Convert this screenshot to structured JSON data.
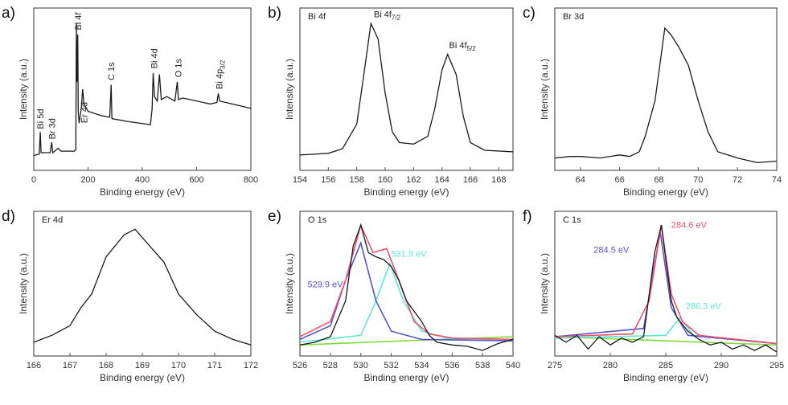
{
  "colors": {
    "raw": "#1a1a1a",
    "envelope": "#f0506e",
    "peak1": "#5555cc",
    "peak2": "#5ee8d6",
    "background": "#7fdc3c"
  },
  "chart_data": [
    {
      "type": "line",
      "panel": "a)",
      "title": "",
      "xlabel": "Binding energy (eV)",
      "ylabel": "Intensity (a.u.)",
      "xlim": [
        0,
        800
      ],
      "ylim": [
        0,
        110
      ],
      "xticks": [
        0,
        200,
        400,
        600,
        800
      ],
      "grid": false,
      "series": [
        {
          "role": "raw",
          "x": [
            0,
            20,
            24,
            27,
            60,
            66,
            70,
            90,
            100,
            150,
            155,
            157,
            159,
            162,
            164,
            167,
            175,
            180,
            185,
            200,
            250,
            280,
            285,
            288,
            350,
            430,
            436,
            440,
            445,
            455,
            463,
            470,
            490,
            520,
            529,
            533,
            550,
            650,
            675,
            680,
            685,
            800
          ],
          "y": [
            10,
            11,
            26,
            12,
            12,
            19,
            12,
            15,
            13,
            13,
            14,
            100,
            60,
            92,
            40,
            32,
            42,
            55,
            45,
            40,
            37,
            36,
            58,
            35,
            33,
            31,
            42,
            66,
            50,
            47,
            65,
            48,
            50,
            47,
            60,
            48,
            49,
            45,
            46,
            52,
            47,
            42
          ]
        }
      ],
      "annotations": [
        {
          "text": "Bi 5d",
          "x": 24,
          "y": 28,
          "rot": true
        },
        {
          "text": "Br 3d",
          "x": 66,
          "y": 21,
          "rot": true
        },
        {
          "text": "Bi 4f",
          "x": 163,
          "y": 95,
          "rot": true
        },
        {
          "text": "Er 4d",
          "x": 185,
          "y": 32,
          "rot": true
        },
        {
          "text": "C 1s",
          "x": 285,
          "y": 61,
          "rot": true
        },
        {
          "text": "Bi 4d",
          "x": 443,
          "y": 69,
          "rot": true
        },
        {
          "text": "O 1s",
          "x": 532,
          "y": 63,
          "rot": true
        },
        {
          "text": "Bi 4p",
          "sub": "3/2",
          "x": 683,
          "y": 55,
          "rot": true
        }
      ]
    },
    {
      "type": "line",
      "panel": "b)",
      "title": "Bi 4f",
      "xlabel": "Binding energy (eV)",
      "ylabel": "Intensity (a.u.)",
      "xlim": [
        154,
        169
      ],
      "ylim": [
        0,
        105
      ],
      "xticks": [
        154,
        156,
        158,
        160,
        162,
        164,
        166,
        168
      ],
      "grid": false,
      "series": [
        {
          "role": "raw",
          "x": [
            154,
            156,
            157,
            158,
            158.5,
            159,
            159.5,
            160,
            160.5,
            161,
            162,
            163,
            163.5,
            164,
            164.4,
            165,
            165.5,
            166,
            167,
            169
          ],
          "y": [
            10,
            11,
            14,
            30,
            62,
            95,
            85,
            50,
            25,
            18,
            17,
            22,
            40,
            65,
            75,
            62,
            35,
            18,
            13,
            12
          ]
        }
      ],
      "annotations": [
        {
          "text": "Bi 4f",
          "sub": "7/2",
          "x": 159.2,
          "y": 99
        },
        {
          "text": "Bi 4f",
          "sub": "5/2",
          "x": 164.5,
          "y": 79
        }
      ]
    },
    {
      "type": "line",
      "panel": "c)",
      "title": "Br 3d",
      "xlabel": "Binding energy (eV)",
      "ylabel": "Intensity (a.u.)",
      "xlim": [
        62.7,
        74
      ],
      "ylim": [
        0,
        105
      ],
      "xticks": [
        64,
        66,
        68,
        70,
        72,
        74
      ],
      "grid": false,
      "series": [
        {
          "role": "raw",
          "x": [
            62.7,
            63.5,
            64,
            65,
            66,
            66.5,
            67,
            67.3,
            67.8,
            68.3,
            68.6,
            69,
            69.5,
            70,
            70.5,
            71,
            72,
            73,
            74
          ],
          "y": [
            8,
            9,
            9,
            8,
            10,
            9,
            12,
            22,
            45,
            92,
            88,
            80,
            68,
            45,
            25,
            12,
            8,
            5,
            6
          ]
        }
      ],
      "annotations": []
    },
    {
      "type": "line",
      "panel": "d)",
      "title": "Er 4d",
      "xlabel": "Binding energy (eV)",
      "ylabel": "Intensity (a.u.)",
      "xlim": [
        166,
        172
      ],
      "ylim": [
        0,
        105
      ],
      "xticks": [
        166,
        167,
        168,
        169,
        170,
        171,
        172
      ],
      "grid": false,
      "series": [
        {
          "role": "raw",
          "x": [
            166,
            166.5,
            167,
            167.3,
            167.6,
            168,
            168.5,
            168.8,
            169.2,
            169.6,
            170,
            170.5,
            171,
            171.5,
            172
          ],
          "y": [
            10,
            15,
            22,
            35,
            45,
            72,
            88,
            92,
            80,
            68,
            45,
            30,
            18,
            12,
            8
          ]
        }
      ],
      "annotations": []
    },
    {
      "type": "line",
      "panel": "e)",
      "title": "O 1s",
      "xlabel": "Binding energy (eV)",
      "ylabel": "Intensity (a.u.)",
      "xlim": [
        526,
        540
      ],
      "ylim": [
        0,
        105
      ],
      "xticks": [
        526,
        528,
        530,
        532,
        534,
        536,
        538,
        540
      ],
      "grid": false,
      "series": [
        {
          "role": "raw",
          "x": [
            526,
            527,
            528,
            529,
            529.5,
            530,
            530.5,
            531,
            531.5,
            532,
            532.5,
            533,
            534,
            534.5,
            535,
            536,
            537,
            538,
            539,
            540
          ],
          "y": [
            8,
            10,
            14,
            40,
            80,
            95,
            75,
            72,
            70,
            65,
            55,
            40,
            25,
            15,
            10,
            8,
            7,
            4,
            9,
            12
          ]
        },
        {
          "role": "envelope",
          "x": [
            526,
            528,
            529,
            530,
            530.8,
            531.7,
            532.5,
            533.5,
            534.5,
            536,
            540
          ],
          "y": [
            14,
            25,
            55,
            95,
            75,
            78,
            55,
            25,
            16,
            13,
            12
          ]
        },
        {
          "role": "peak1",
          "x": [
            526,
            528,
            529,
            530,
            531,
            532,
            534,
            540
          ],
          "y": [
            12,
            22,
            55,
            82,
            40,
            18,
            12,
            11
          ]
        },
        {
          "role": "peak2",
          "x": [
            526,
            530,
            531,
            531.9,
            532.8,
            534,
            536,
            540
          ],
          "y": [
            10,
            15,
            40,
            67,
            40,
            18,
            12,
            11
          ]
        },
        {
          "role": "background",
          "x": [
            526,
            533,
            540
          ],
          "y": [
            8,
            11,
            14
          ]
        }
      ],
      "annotations": [
        {
          "text": "529.9 eV",
          "color": "peak1",
          "x": 526.5,
          "y": 50
        },
        {
          "text": "531.9 eV",
          "color": "peak2",
          "x": 532,
          "y": 72
        }
      ]
    },
    {
      "type": "line",
      "panel": "f)",
      "title": "C 1s",
      "xlabel": "Binding energy (eV)",
      "ylabel": "Intensity (a.u.)",
      "xlim": [
        275,
        295
      ],
      "ylim": [
        0,
        105
      ],
      "xticks": [
        275,
        280,
        285,
        290,
        295
      ],
      "grid": false,
      "series": [
        {
          "role": "raw",
          "x": [
            275,
            276,
            277,
            278,
            279,
            280,
            281,
            282,
            283,
            284,
            284.6,
            285,
            285.5,
            286,
            287,
            288,
            289,
            290,
            291,
            292,
            293,
            294,
            295
          ],
          "y": [
            15,
            10,
            15,
            5,
            14,
            8,
            13,
            10,
            14,
            75,
            95,
            70,
            40,
            28,
            18,
            12,
            8,
            10,
            5,
            8,
            4,
            8,
            3
          ]
        },
        {
          "role": "envelope",
          "x": [
            275,
            282,
            283.5,
            284.6,
            285.5,
            286.5,
            288,
            295
          ],
          "y": [
            14,
            16,
            40,
            95,
            45,
            25,
            15,
            9
          ]
        },
        {
          "role": "peak1",
          "x": [
            275,
            283,
            284.5,
            285.5,
            287,
            295
          ],
          "y": [
            14,
            20,
            90,
            35,
            15,
            9
          ]
        },
        {
          "role": "peak2",
          "x": [
            275,
            285,
            286.3,
            287.5,
            295
          ],
          "y": [
            13,
            15,
            28,
            15,
            9
          ]
        },
        {
          "role": "background",
          "x": [
            275,
            295
          ],
          "y": [
            14,
            8
          ]
        }
      ],
      "annotations": [
        {
          "text": "284.6 eV",
          "color": "envelope",
          "x": 285.5,
          "y": 93
        },
        {
          "text": "284.5 eV",
          "color": "peak1",
          "x": 278.5,
          "y": 75
        },
        {
          "text": "286.3 eV",
          "color": "peak2",
          "x": 286.8,
          "y": 34
        }
      ]
    }
  ]
}
